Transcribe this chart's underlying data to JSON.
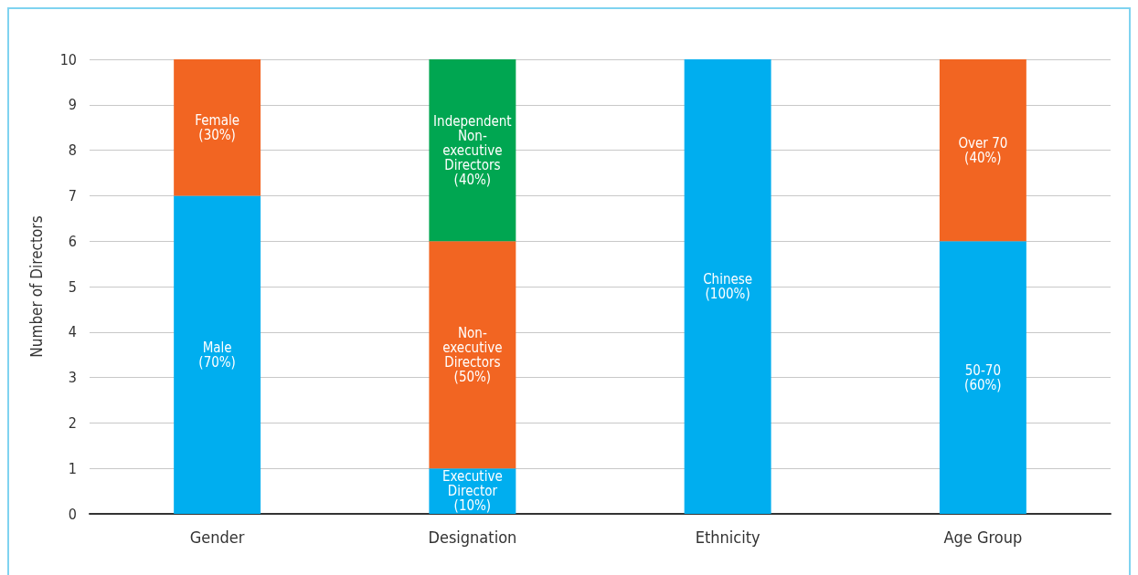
{
  "chart_data": {
    "type": "bar",
    "stacked": true,
    "ylabel": "Number of Directors",
    "categories": [
      "Gender",
      "Designation",
      "Ethnicity",
      "Age Group"
    ],
    "series": [
      {
        "color": "#00aeef",
        "values": [
          7,
          1,
          10,
          6
        ]
      },
      {
        "color": "#f26522",
        "values": [
          3,
          5,
          null,
          4
        ]
      },
      {
        "color": "#00a651",
        "values": [
          null,
          4,
          null,
          null
        ]
      }
    ],
    "annotations": [
      "Male\n(70%)",
      "Female\n(30%)",
      "Executive\nDirector\n(10%)",
      "Non-\nexecutive\nDirectors\n(50%)",
      "Independent\nNon-\nexecutive\nDirectors\n(40%)",
      "Chinese\n(100%)",
      "50-70\n(60%)",
      "Over 70\n(40%)"
    ],
    "ylim": [
      0,
      10
    ],
    "yticks": [
      0,
      1,
      2,
      3,
      4,
      5,
      6,
      7,
      8,
      9,
      10
    ],
    "grid": "y"
  }
}
